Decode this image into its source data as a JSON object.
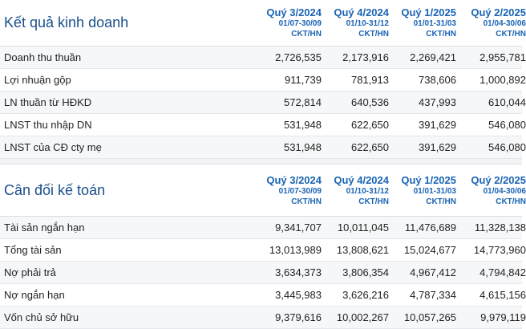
{
  "periods": [
    {
      "quarter": "Quý 3/2024",
      "range": "01/07-30/09",
      "unit": "CKT/HN"
    },
    {
      "quarter": "Quý 4/2024",
      "range": "01/10-31/12",
      "unit": "CKT/HN"
    },
    {
      "quarter": "Quý 1/2025",
      "range": "01/01-31/03",
      "unit": "CKT/HN"
    },
    {
      "quarter": "Quý 2/2025",
      "range": "01/04-30/06",
      "unit": "CKT/HN"
    }
  ],
  "income": {
    "title": "Kết quả kinh doanh",
    "rows": [
      {
        "label": "Doanh thu thuần",
        "values": [
          "2,726,535",
          "2,173,916",
          "2,269,421",
          "2,955,781"
        ]
      },
      {
        "label": "Lợi nhuận gộp",
        "values": [
          "911,739",
          "781,913",
          "738,606",
          "1,000,892"
        ]
      },
      {
        "label": "LN thuần từ HĐKD",
        "values": [
          "572,814",
          "640,536",
          "437,993",
          "610,044"
        ]
      },
      {
        "label": "LNST thu nhập DN",
        "values": [
          "531,948",
          "622,650",
          "391,629",
          "546,080"
        ]
      },
      {
        "label": "LNST của CĐ cty mẹ",
        "values": [
          "531,948",
          "622,650",
          "391,629",
          "546,080"
        ]
      }
    ]
  },
  "balance": {
    "title": "Cân đối kế toán",
    "rows": [
      {
        "label": "Tài sản ngắn hạn",
        "values": [
          "9,341,707",
          "10,011,045",
          "11,476,689",
          "11,328,138"
        ]
      },
      {
        "label": "Tổng tài sản",
        "values": [
          "13,013,989",
          "13,808,621",
          "15,024,677",
          "14,773,960"
        ]
      },
      {
        "label": "Nợ phải trả",
        "values": [
          "3,634,373",
          "3,806,354",
          "4,967,412",
          "4,794,842"
        ]
      },
      {
        "label": "Nợ ngắn hạn",
        "values": [
          "3,445,983",
          "3,626,216",
          "4,787,334",
          "4,615,156"
        ]
      },
      {
        "label": "Vốn chủ sở hữu",
        "values": [
          "9,379,616",
          "10,002,267",
          "10,057,265",
          "9,979,119"
        ]
      }
    ]
  }
}
